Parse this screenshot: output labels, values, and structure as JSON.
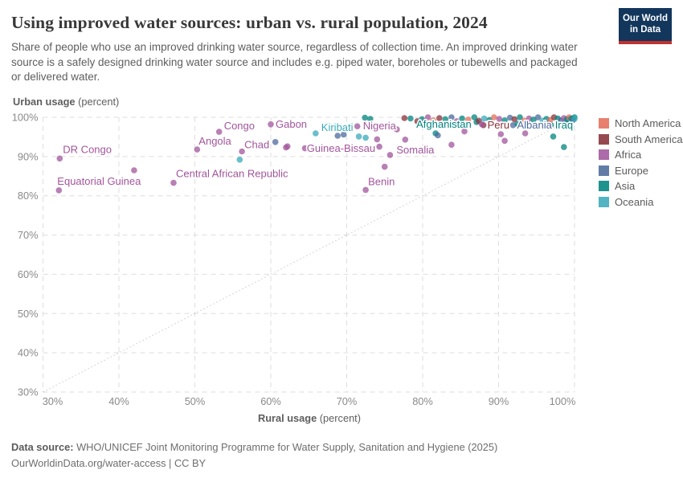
{
  "header": {
    "title": "Using improved water sources: urban vs. rural population, 2024",
    "subtitle": "Share of people who use an improved drinking water source, regardless of collection time. An improved drinking water source is a safely designed drinking water source and includes e.g. piped water, boreholes or tubewells and packaged or delivered water.",
    "logo": {
      "line1": "Our World",
      "line2": "in Data"
    }
  },
  "chart_data": {
    "type": "scatter",
    "title": "Using improved water sources: urban vs. rural population, 2024",
    "xlabel": "Rural usage",
    "xlabel_unit": "(percent)",
    "ylabel": "Urban usage",
    "ylabel_unit": "(percent)",
    "xlim": [
      30,
      101
    ],
    "ylim": [
      30,
      101
    ],
    "grid": "dashed",
    "diagonal_line": {
      "from": [
        30,
        30
      ],
      "to": [
        100,
        100
      ]
    },
    "x_ticks": [
      {
        "v": 30,
        "label": "30%"
      },
      {
        "v": 40,
        "label": "40%"
      },
      {
        "v": 50,
        "label": "50%"
      },
      {
        "v": 60,
        "label": "60%"
      },
      {
        "v": 70,
        "label": "70%"
      },
      {
        "v": 80,
        "label": "80%"
      },
      {
        "v": 90,
        "label": "90%"
      },
      {
        "v": 100,
        "label": "100%"
      }
    ],
    "y_ticks": [
      {
        "v": 30,
        "label": "30%"
      },
      {
        "v": 40,
        "label": "40%"
      },
      {
        "v": 50,
        "label": "50%"
      },
      {
        "v": 60,
        "label": "60%"
      },
      {
        "v": 70,
        "label": "70%"
      },
      {
        "v": 80,
        "label": "80%"
      },
      {
        "v": 90,
        "label": "90%"
      },
      {
        "v": 100,
        "label": "100%"
      }
    ],
    "legend_position": "right",
    "legend": [
      {
        "code": "NA",
        "label": "North America",
        "color": "#E56E5A"
      },
      {
        "code": "SA",
        "label": "South America",
        "color": "#883039"
      },
      {
        "code": "AF",
        "label": "Africa",
        "color": "#A2559C"
      },
      {
        "code": "EU",
        "label": "Europe",
        "color": "#4C6A9C"
      },
      {
        "code": "AS",
        "label": "Asia",
        "color": "#00847E"
      },
      {
        "code": "OC",
        "label": "Oceania",
        "color": "#38AABA"
      }
    ],
    "points_format": [
      "rural_pct",
      "urban_pct",
      "continent_code",
      "label",
      "label_dx_px",
      "label_dy_px"
    ],
    "points": [
      [
        32.2,
        89.5,
        "AF",
        "DR Congo",
        4,
        -7
      ],
      [
        32.1,
        81.4,
        "AF",
        "Equatorial Guinea",
        -2,
        -7
      ],
      [
        47.2,
        83.3,
        "AF",
        "Central African Republic",
        3,
        -7
      ],
      [
        50.3,
        91.8,
        "AF",
        "Angola",
        2,
        -6
      ],
      [
        53.2,
        96.3,
        "AF",
        "Congo",
        6,
        -3
      ],
      [
        56.2,
        91.3,
        "AF",
        "Chad",
        3,
        -4
      ],
      [
        60.0,
        98.2,
        "AF",
        "Gabon",
        6,
        4
      ],
      [
        65.9,
        95.9,
        "OC",
        "Kiribati",
        7,
        -3
      ],
      [
        62.2,
        92.6,
        "AF",
        "Guinea-Bissau",
        24,
        7
      ],
      [
        71.4,
        97.7,
        "AF",
        "Nigeria",
        7,
        4
      ],
      [
        75.7,
        90.4,
        "AF",
        "Somalia",
        8,
        -2
      ],
      [
        72.5,
        81.5,
        "AF",
        "Benin",
        3,
        -6
      ],
      [
        81.7,
        95.9,
        "AS",
        "Afghanistan",
        -24,
        -7
      ],
      [
        88.0,
        98.0,
        "SA",
        "Peru",
        5,
        4
      ],
      [
        91.9,
        98.0,
        "EU",
        "Albania",
        5,
        4
      ],
      [
        96.9,
        98.0,
        "AS",
        "Iraq",
        5,
        4
      ],
      [
        42.0,
        86.5,
        "AF"
      ],
      [
        55.9,
        89.2,
        "OC"
      ],
      [
        64.2,
        98.2,
        "AF"
      ],
      [
        60.6,
        93.7,
        "EU"
      ],
      [
        62.0,
        92.3,
        "AF"
      ],
      [
        64.5,
        92.1,
        "AF"
      ],
      [
        68.8,
        95.3,
        "EU"
      ],
      [
        69.6,
        95.6,
        "EU"
      ],
      [
        71.6,
        95.1,
        "OC"
      ],
      [
        72.5,
        94.8,
        "OC"
      ],
      [
        74.0,
        94.4,
        "AF"
      ],
      [
        74.3,
        92.5,
        "AF"
      ],
      [
        76.6,
        96.9,
        "AF"
      ],
      [
        75.0,
        87.4,
        "AF"
      ],
      [
        77.7,
        94.3,
        "AF"
      ],
      [
        82.0,
        95.4,
        "EU"
      ],
      [
        83.8,
        93.0,
        "AF"
      ],
      [
        85.5,
        96.4,
        "AF"
      ],
      [
        90.3,
        95.7,
        "AF"
      ],
      [
        90.8,
        94.0,
        "AF"
      ],
      [
        93.5,
        95.9,
        "AF"
      ],
      [
        95.1,
        97.7,
        "NA"
      ],
      [
        97.2,
        95.1,
        "AS"
      ],
      [
        98.6,
        92.4,
        "AS"
      ],
      [
        72.4,
        99.9,
        "AS"
      ],
      [
        73.1,
        99.6,
        "AS"
      ],
      [
        77.6,
        99.8,
        "SA"
      ],
      [
        78.4,
        99.7,
        "AS"
      ],
      [
        87.1,
        98.8,
        "AS"
      ],
      [
        79.3,
        99.0,
        "SA"
      ],
      [
        79.9,
        99.5,
        "AS"
      ],
      [
        80.3,
        98.9,
        "AF"
      ],
      [
        80.7,
        100,
        "AF"
      ],
      [
        81.4,
        99.2,
        "NA"
      ],
      [
        82.2,
        99.8,
        "SA"
      ],
      [
        82.8,
        98.1,
        "AF"
      ],
      [
        83.0,
        99.5,
        "AS"
      ],
      [
        83.8,
        100,
        "EU"
      ],
      [
        84.5,
        99.0,
        "AF"
      ],
      [
        85.0,
        98.3,
        "EU"
      ],
      [
        85.2,
        99.7,
        "AS"
      ],
      [
        86.0,
        99.4,
        "NA"
      ],
      [
        86.8,
        100,
        "AS"
      ],
      [
        87.4,
        99.1,
        "SA"
      ],
      [
        87.8,
        98.2,
        "AF"
      ],
      [
        88.1,
        99.7,
        "OC"
      ],
      [
        88.8,
        99.3,
        "AS"
      ],
      [
        89.0,
        98.4,
        "AF"
      ],
      [
        89.4,
        100,
        "NA"
      ],
      [
        90.1,
        99.6,
        "AF"
      ],
      [
        90.8,
        99.2,
        "AS"
      ],
      [
        91.5,
        99.9,
        "EU"
      ],
      [
        92.1,
        99.5,
        "SA"
      ],
      [
        92.5,
        98.3,
        "AS"
      ],
      [
        92.8,
        100,
        "AS"
      ],
      [
        93.4,
        99.1,
        "NA"
      ],
      [
        93.8,
        98.6,
        "SA"
      ],
      [
        94.0,
        99.7,
        "AF"
      ],
      [
        94.6,
        99.4,
        "AS"
      ],
      [
        95.2,
        100,
        "EU"
      ],
      [
        95.8,
        99.1,
        "OC"
      ],
      [
        96.3,
        99.6,
        "AS"
      ],
      [
        96.7,
        98.3,
        "AS"
      ],
      [
        96.8,
        99.3,
        "NA"
      ],
      [
        97.3,
        100,
        "SA"
      ],
      [
        97.8,
        99.7,
        "AS"
      ],
      [
        98.2,
        99.2,
        "EU"
      ],
      [
        98.9,
        98.5,
        "EU"
      ],
      [
        98.6,
        99.8,
        "AF"
      ],
      [
        99.0,
        99.5,
        "AS"
      ],
      [
        99.3,
        100,
        "NA"
      ],
      [
        99.6,
        99.7,
        "AS"
      ],
      [
        99.8,
        99.3,
        "EU"
      ],
      [
        100,
        100,
        "AS"
      ],
      [
        100,
        99.6,
        "OC"
      ]
    ]
  },
  "footer": {
    "source_label": "Data source:",
    "source_text": " WHO/UNICEF Joint Monitoring Programme for Water Supply, Sanitation and Hygiene (2025)",
    "link": "OurWorldinData.org/water-access",
    "separator": " | ",
    "license": "CC BY"
  }
}
